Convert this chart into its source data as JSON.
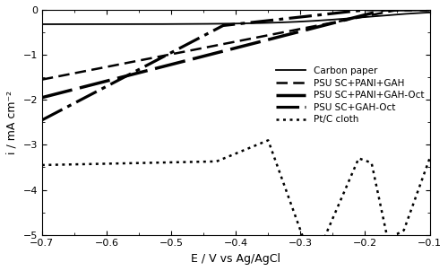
{
  "title": "",
  "xlabel": "E / V vs Ag/AgCl",
  "ylabel": "i / mA cm⁻²",
  "xlim": [
    -0.7,
    -0.1
  ],
  "ylim": [
    -5,
    0
  ],
  "xticks": [
    -0.7,
    -0.6,
    -0.5,
    -0.4,
    -0.3,
    -0.2,
    -0.1
  ],
  "yticks": [
    0,
    -1,
    -2,
    -3,
    -4,
    -5
  ],
  "background_color": "#ffffff",
  "line_color": "#000000",
  "legend_labels": [
    "Carbon paper",
    "PSU SC+PANI+GAH",
    "PSU SC+PANI+GAH-Oct",
    "PSU SC+GAH-Oct",
    "Pt/C cloth"
  ],
  "figsize": [
    5.0,
    3.02
  ],
  "dpi": 100
}
